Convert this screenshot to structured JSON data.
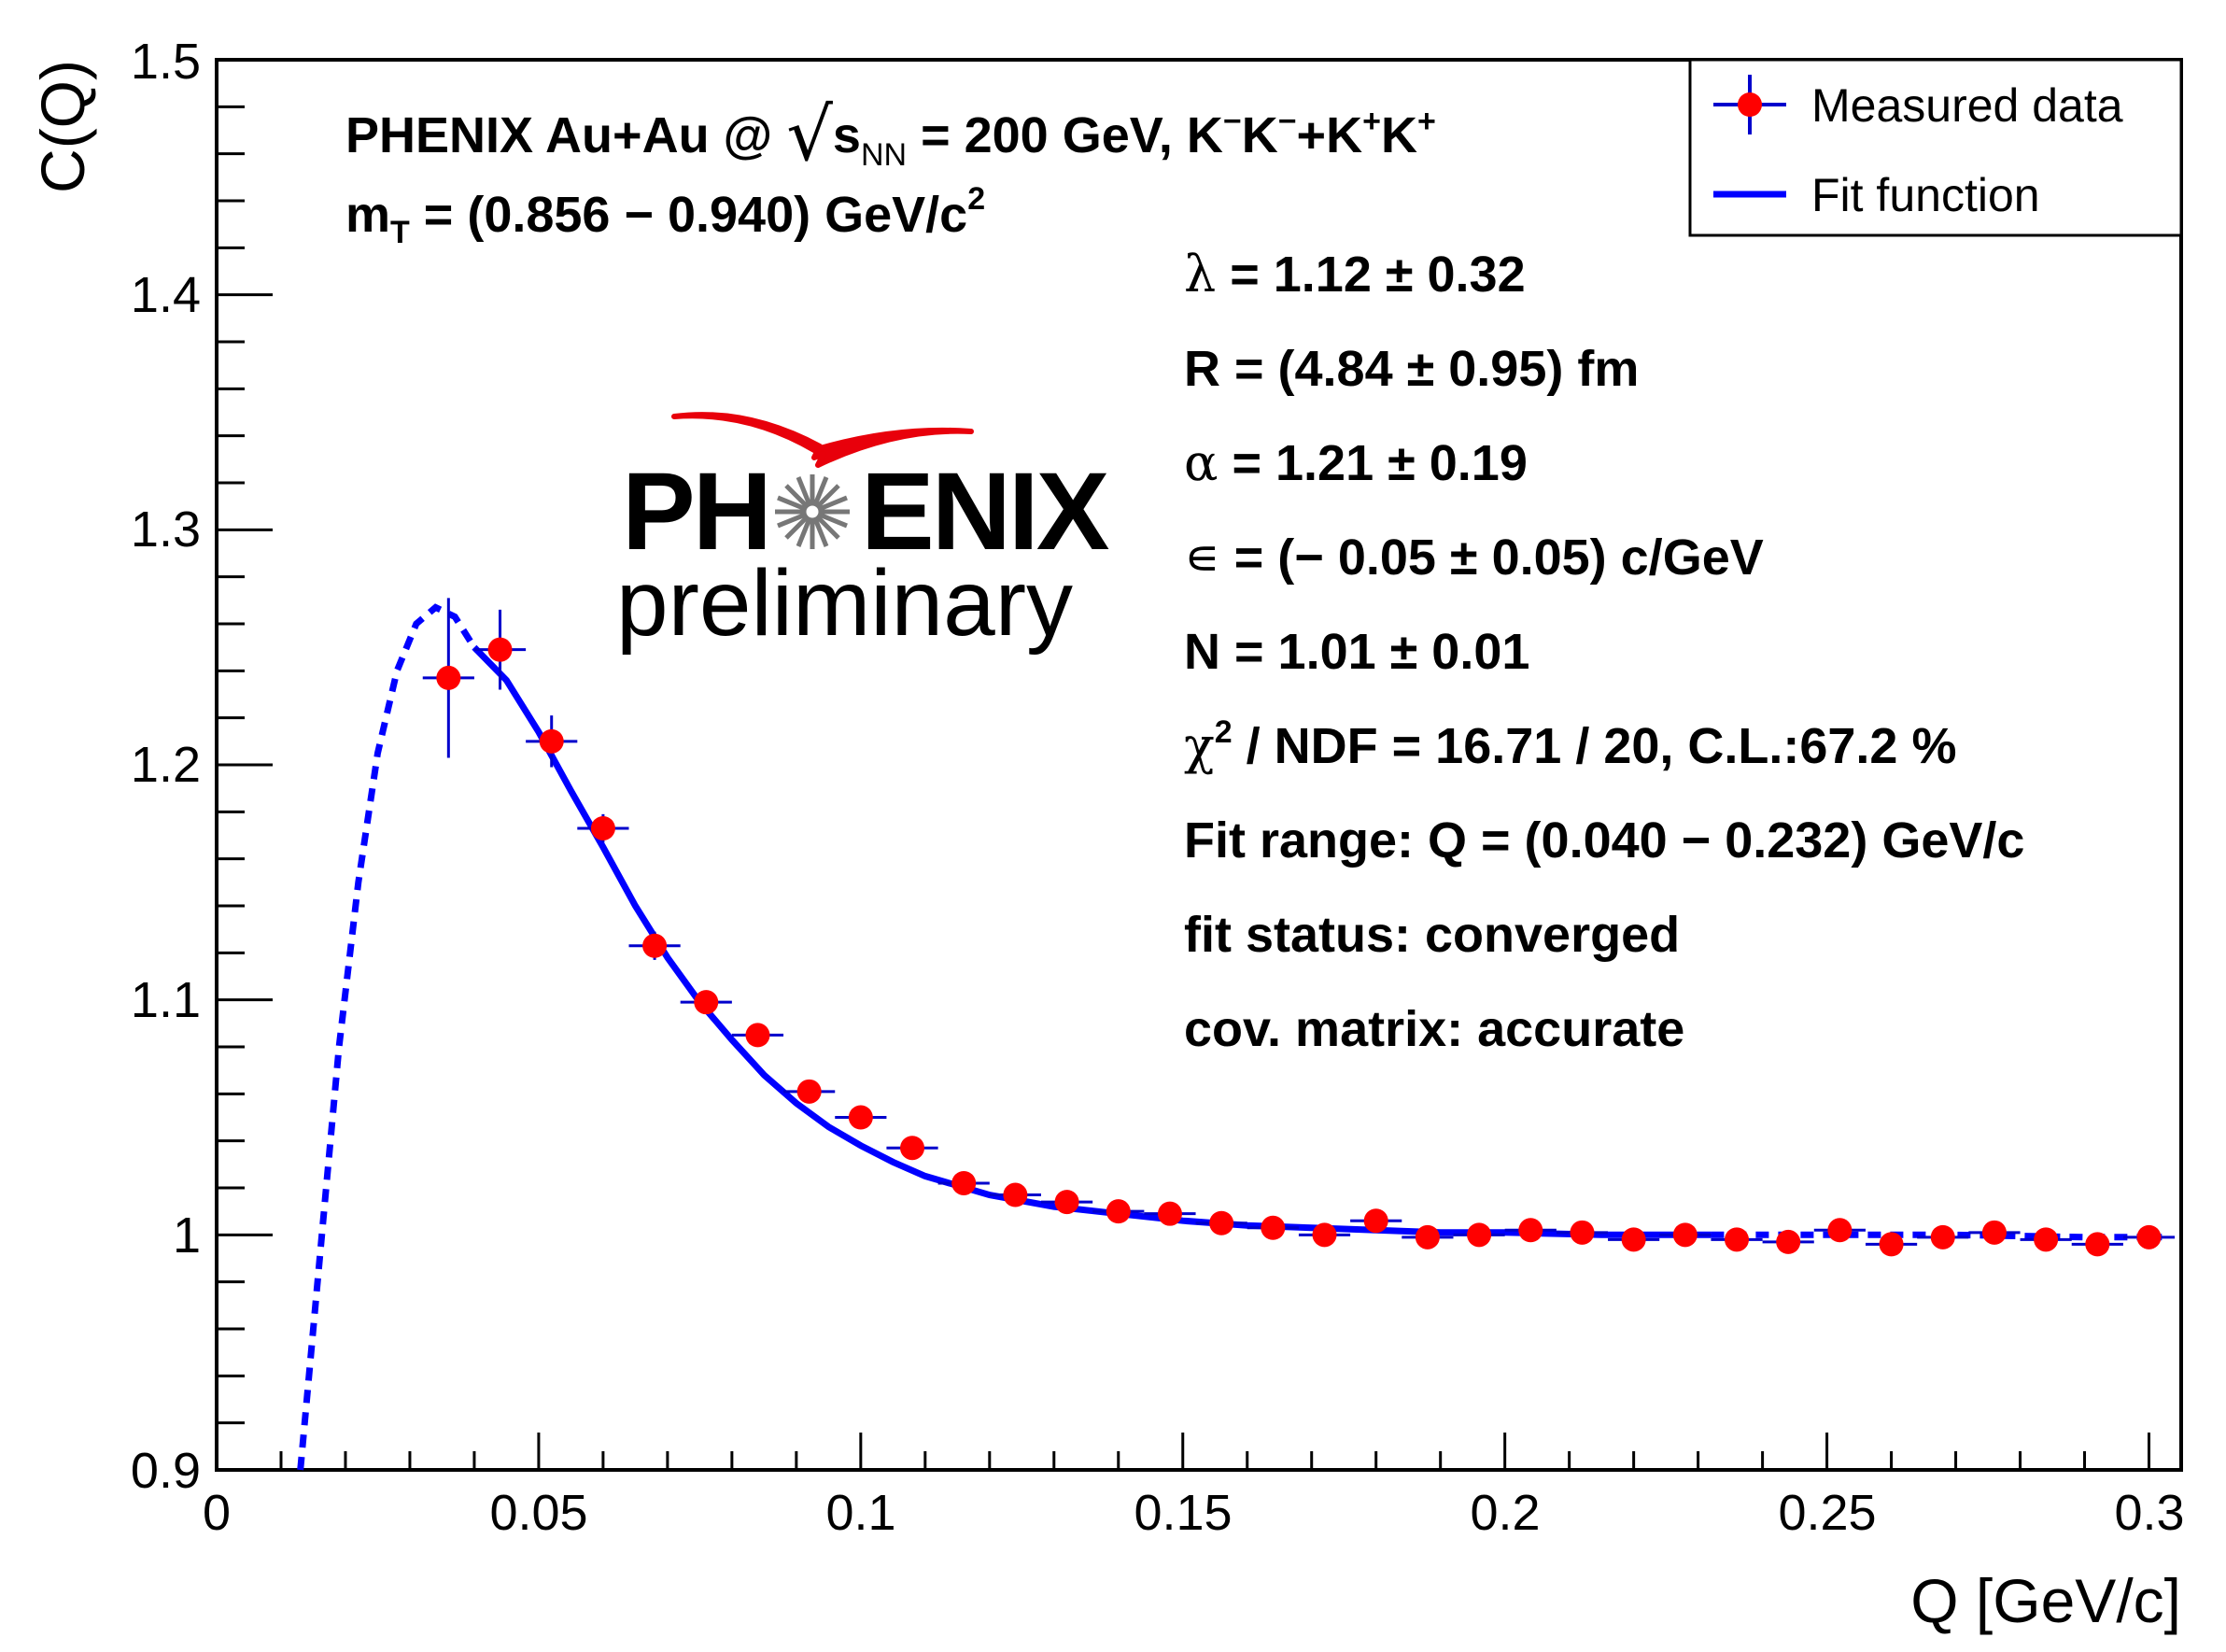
{
  "colors": {
    "marker": "#ff0000",
    "error_bar": "#0000cc",
    "fit_line": "#0000ff",
    "logo_arc": "#e8000b",
    "text": "#000000",
    "background": "#ffffff"
  },
  "header": {
    "line1_prefix": "PHENIX Au+Au @ ",
    "s": "s",
    "s_sub": "NN",
    "line1_mid": " = 200 GeV, K",
    "kminus_sup": "−",
    "k2": "K",
    "k2_sup": "−",
    "plus_k": "+K",
    "kplus_sup": "+",
    "k4": "K",
    "k4_sup": "+",
    "mt_m": "m",
    "mt_sub": "T",
    "mt_rest": " = (0.856  − 0.940) GeV/c",
    "mt_sup": "2"
  },
  "fit_info": {
    "lambda_sym": "λ",
    "lambda_text": " = 1.12 ± 0.32",
    "r_text": "R = (4.84  ± 0.95) fm",
    "alpha_sym": "α",
    "alpha_text": " = 1.21 ± 0.19",
    "eps_sym": "∊",
    "eps_text": " = (− 0.05  ± 0.05) c/GeV",
    "n_text": "N = 1.01 ± 0.01",
    "chi_sym": "χ",
    "chi_sup": "2",
    "chi_text": " / NDF = 16.71 / 20, C.L.:67.2 %",
    "range_text": "Fit range: Q = (0.040  − 0.232) GeV/c",
    "status_text": "fit status: converged",
    "cov_text": "cov. matrix: accurate"
  },
  "legend": {
    "measured": "Measured data",
    "fit": "Fit function"
  },
  "logo": {
    "ph": "PH",
    "enix": "ENIX",
    "sub": "preliminary"
  },
  "chart_data": {
    "type": "scatter",
    "xlabel": "Q [GeV/c]",
    "ylabel": "C(Q)",
    "xlim": [
      0,
      0.305
    ],
    "ylim": [
      0.9,
      1.5
    ],
    "x_ticks": [
      {
        "value": 0,
        "label": "0"
      },
      {
        "value": 0.05,
        "label": "0.05"
      },
      {
        "value": 0.1,
        "label": "0.1"
      },
      {
        "value": 0.15,
        "label": "0.15"
      },
      {
        "value": 0.2,
        "label": "0.2"
      },
      {
        "value": 0.25,
        "label": "0.25"
      },
      {
        "value": 0.3,
        "label": "0.3"
      }
    ],
    "y_ticks": [
      {
        "value": 0.9,
        "label": "0.9"
      },
      {
        "value": 1.0,
        "label": "1"
      },
      {
        "value": 1.1,
        "label": "1.1"
      },
      {
        "value": 1.2,
        "label": "1.2"
      },
      {
        "value": 1.3,
        "label": "1.3"
      },
      {
        "value": 1.4,
        "label": "1.4"
      },
      {
        "value": 1.5,
        "label": "1.5"
      }
    ],
    "series": [
      {
        "name": "Measured data",
        "bin_half_width": 0.004,
        "points": [
          {
            "x": 0.036,
            "y": 1.237,
            "err": 0.034
          },
          {
            "x": 0.044,
            "y": 1.249,
            "err": 0.017
          },
          {
            "x": 0.052,
            "y": 1.21,
            "err": 0.011
          },
          {
            "x": 0.06,
            "y": 1.173,
            "err": 0.006
          },
          {
            "x": 0.068,
            "y": 1.123,
            "err": 0.006
          },
          {
            "x": 0.076,
            "y": 1.099,
            "err": 0.004
          },
          {
            "x": 0.084,
            "y": 1.085,
            "err": 0.003
          },
          {
            "x": 0.092,
            "y": 1.061,
            "err": 0.003
          },
          {
            "x": 0.1,
            "y": 1.05,
            "err": 0.003
          },
          {
            "x": 0.108,
            "y": 1.037,
            "err": 0.002
          },
          {
            "x": 0.116,
            "y": 1.022,
            "err": 0.002
          },
          {
            "x": 0.124,
            "y": 1.017,
            "err": 0.002
          },
          {
            "x": 0.132,
            "y": 1.014,
            "err": 0.002
          },
          {
            "x": 0.14,
            "y": 1.01,
            "err": 0.002
          },
          {
            "x": 0.148,
            "y": 1.009,
            "err": 0.002
          },
          {
            "x": 0.156,
            "y": 1.005,
            "err": 0.002
          },
          {
            "x": 0.164,
            "y": 1.003,
            "err": 0.002
          },
          {
            "x": 0.172,
            "y": 1.0,
            "err": 0.002
          },
          {
            "x": 0.18,
            "y": 1.006,
            "err": 0.002
          },
          {
            "x": 0.188,
            "y": 0.999,
            "err": 0.002
          },
          {
            "x": 0.196,
            "y": 1.0,
            "err": 0.002
          },
          {
            "x": 0.204,
            "y": 1.002,
            "err": 0.002
          },
          {
            "x": 0.212,
            "y": 1.001,
            "err": 0.002
          },
          {
            "x": 0.22,
            "y": 0.998,
            "err": 0.002
          },
          {
            "x": 0.228,
            "y": 1.0,
            "err": 0.002
          },
          {
            "x": 0.236,
            "y": 0.998,
            "err": 0.002
          },
          {
            "x": 0.244,
            "y": 0.997,
            "err": 0.002
          },
          {
            "x": 0.252,
            "y": 1.002,
            "err": 0.002
          },
          {
            "x": 0.26,
            "y": 0.996,
            "err": 0.002
          },
          {
            "x": 0.268,
            "y": 0.999,
            "err": 0.002
          },
          {
            "x": 0.276,
            "y": 1.001,
            "err": 0.002
          },
          {
            "x": 0.284,
            "y": 0.998,
            "err": 0.002
          },
          {
            "x": 0.292,
            "y": 0.996,
            "err": 0.002
          },
          {
            "x": 0.3,
            "y": 0.999,
            "err": 0.002
          }
        ]
      },
      {
        "name": "Fit function",
        "fit_range": [
          0.04,
          0.232
        ],
        "points": [
          {
            "x": 0.013,
            "y": 0.9
          },
          {
            "x": 0.016,
            "y": 0.99
          },
          {
            "x": 0.019,
            "y": 1.08
          },
          {
            "x": 0.022,
            "y": 1.15
          },
          {
            "x": 0.025,
            "y": 1.205
          },
          {
            "x": 0.028,
            "y": 1.24
          },
          {
            "x": 0.031,
            "y": 1.26
          },
          {
            "x": 0.034,
            "y": 1.267
          },
          {
            "x": 0.037,
            "y": 1.263
          },
          {
            "x": 0.04,
            "y": 1.25
          },
          {
            "x": 0.045,
            "y": 1.236
          },
          {
            "x": 0.05,
            "y": 1.214
          },
          {
            "x": 0.055,
            "y": 1.189
          },
          {
            "x": 0.06,
            "y": 1.165
          },
          {
            "x": 0.065,
            "y": 1.14
          },
          {
            "x": 0.07,
            "y": 1.118
          },
          {
            "x": 0.075,
            "y": 1.099
          },
          {
            "x": 0.08,
            "y": 1.083
          },
          {
            "x": 0.085,
            "y": 1.068
          },
          {
            "x": 0.09,
            "y": 1.056
          },
          {
            "x": 0.095,
            "y": 1.046
          },
          {
            "x": 0.1,
            "y": 1.038
          },
          {
            "x": 0.105,
            "y": 1.031
          },
          {
            "x": 0.11,
            "y": 1.025
          },
          {
            "x": 0.115,
            "y": 1.021
          },
          {
            "x": 0.12,
            "y": 1.017
          },
          {
            "x": 0.13,
            "y": 1.012
          },
          {
            "x": 0.14,
            "y": 1.009
          },
          {
            "x": 0.15,
            "y": 1.006
          },
          {
            "x": 0.16,
            "y": 1.004
          },
          {
            "x": 0.17,
            "y": 1.003
          },
          {
            "x": 0.18,
            "y": 1.002
          },
          {
            "x": 0.19,
            "y": 1.001
          },
          {
            "x": 0.2,
            "y": 1.001
          },
          {
            "x": 0.215,
            "y": 1.0
          },
          {
            "x": 0.232,
            "y": 1.0
          },
          {
            "x": 0.25,
            "y": 1.0
          },
          {
            "x": 0.27,
            "y": 1.0
          },
          {
            "x": 0.29,
            "y": 0.999
          },
          {
            "x": 0.302,
            "y": 0.999
          }
        ]
      }
    ]
  }
}
